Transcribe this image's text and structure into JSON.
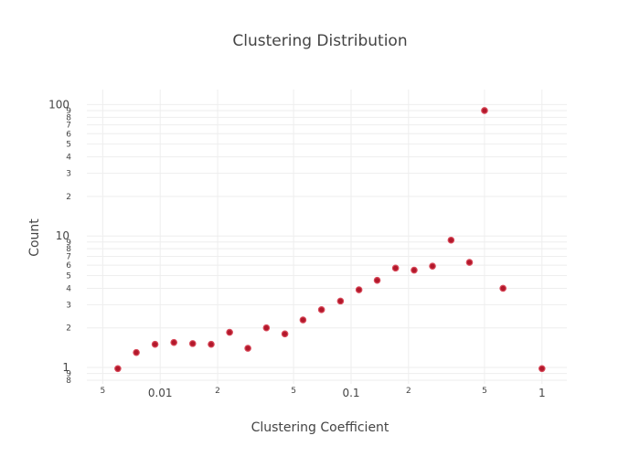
{
  "chart_data": {
    "type": "scatter",
    "title": "Clustering Distribution",
    "xlabel": "Clustering Coefficient",
    "ylabel": "Count",
    "x_scale": "log",
    "y_scale": "log",
    "xlim": [
      0.0035,
      1.35
    ],
    "ylim": [
      0.75,
      130
    ],
    "grid": true,
    "legend": "none",
    "marker_color": "#b2182b",
    "x_major_ticks": [
      {
        "value": 0.01,
        "label": "0.01"
      },
      {
        "value": 0.1,
        "label": "0.1"
      },
      {
        "value": 1,
        "label": "1"
      }
    ],
    "x_minor_ticks": [
      {
        "value": 0.005,
        "label": "5"
      },
      {
        "value": 0.02,
        "label": "2"
      },
      {
        "value": 0.05,
        "label": "5"
      },
      {
        "value": 0.2,
        "label": "2"
      },
      {
        "value": 0.5,
        "label": "5"
      }
    ],
    "y_major_ticks": [
      {
        "value": 1,
        "label": "1"
      },
      {
        "value": 10,
        "label": "10"
      },
      {
        "value": 100,
        "label": "100"
      }
    ],
    "y_minor_ticks": [
      {
        "value": 0.8,
        "label": "8"
      },
      {
        "value": 0.9,
        "label": "9"
      },
      {
        "value": 2,
        "label": "2"
      },
      {
        "value": 3,
        "label": "3"
      },
      {
        "value": 4,
        "label": "4"
      },
      {
        "value": 5,
        "label": "5"
      },
      {
        "value": 6,
        "label": "6"
      },
      {
        "value": 7,
        "label": "7"
      },
      {
        "value": 8,
        "label": "8"
      },
      {
        "value": 9,
        "label": "9"
      },
      {
        "value": 20,
        "label": "2"
      },
      {
        "value": 30,
        "label": "3"
      },
      {
        "value": 40,
        "label": "4"
      },
      {
        "value": 50,
        "label": "5"
      },
      {
        "value": 60,
        "label": "6"
      },
      {
        "value": 70,
        "label": "7"
      },
      {
        "value": 80,
        "label": "8"
      },
      {
        "value": 90,
        "label": "9"
      }
    ],
    "series": [
      {
        "points": [
          {
            "x": 0.006,
            "y": 0.98
          },
          {
            "x": 0.0075,
            "y": 1.3
          },
          {
            "x": 0.0094,
            "y": 1.5
          },
          {
            "x": 0.0118,
            "y": 1.55
          },
          {
            "x": 0.0148,
            "y": 1.52
          },
          {
            "x": 0.0185,
            "y": 1.5
          },
          {
            "x": 0.0231,
            "y": 1.85
          },
          {
            "x": 0.0288,
            "y": 1.4
          },
          {
            "x": 0.036,
            "y": 2.0
          },
          {
            "x": 0.045,
            "y": 1.8
          },
          {
            "x": 0.056,
            "y": 2.3
          },
          {
            "x": 0.07,
            "y": 2.75
          },
          {
            "x": 0.088,
            "y": 3.2
          },
          {
            "x": 0.11,
            "y": 3.9
          },
          {
            "x": 0.137,
            "y": 4.6
          },
          {
            "x": 0.171,
            "y": 5.7
          },
          {
            "x": 0.214,
            "y": 5.5
          },
          {
            "x": 0.267,
            "y": 5.9
          },
          {
            "x": 0.334,
            "y": 9.3
          },
          {
            "x": 0.417,
            "y": 6.3
          },
          {
            "x": 0.5,
            "y": 90
          },
          {
            "x": 0.625,
            "y": 4.0
          },
          {
            "x": 1.0,
            "y": 0.98
          }
        ]
      }
    ]
  }
}
